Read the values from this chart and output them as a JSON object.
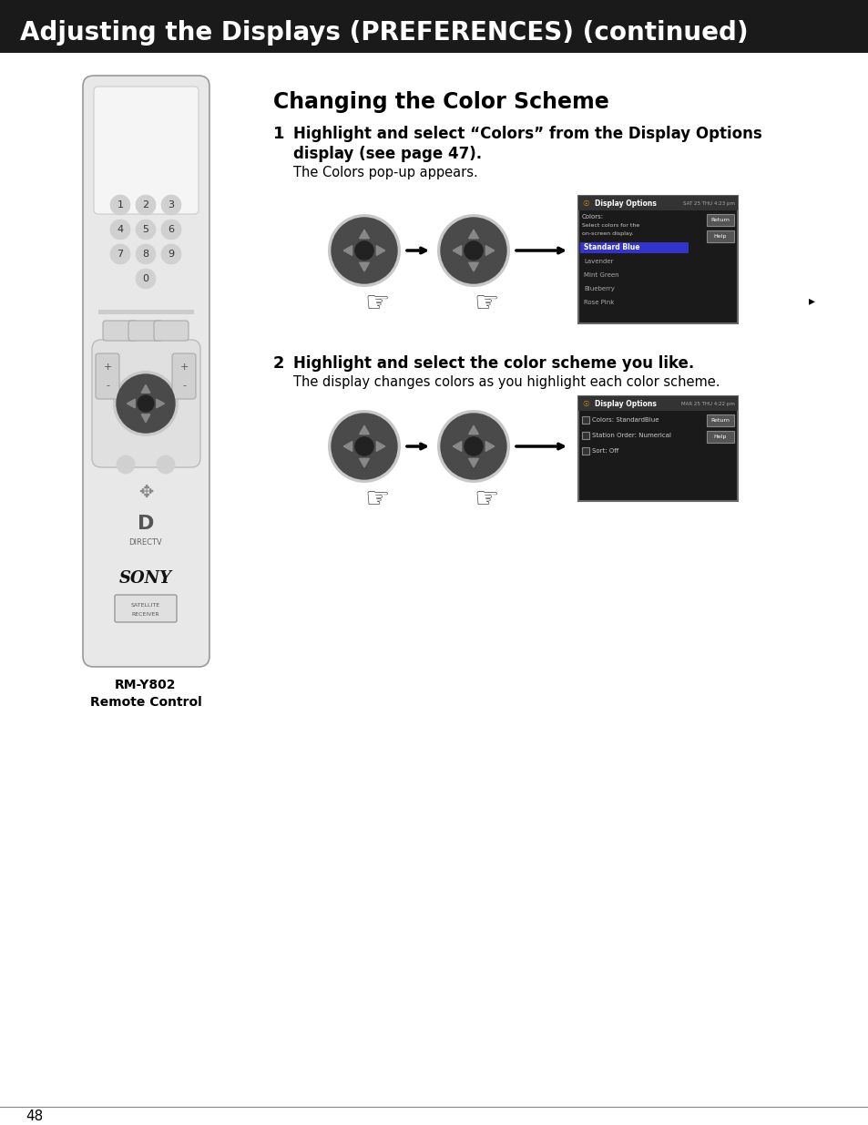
{
  "page_bg": "#ffffff",
  "header_bg": "#1a1a1a",
  "header_text": "Adjusting the Displays (PREFERENCES) (continued)",
  "header_text_color": "#ffffff",
  "header_font_size": 20,
  "section_title": "Changing the Color Scheme",
  "step1_num": "1",
  "step1_line1": "Highlight and select “Colors” from the Display Options",
  "step1_line2": "display (see page 47).",
  "step1_sub": "The Colors pop-up appears.",
  "step2_num": "2",
  "step2_bold": "Highlight and select the color scheme you like.",
  "step2_sub": "The display changes colors as you highlight each color scheme.",
  "remote_label1": "RM-Y802",
  "remote_label2": "Remote Control",
  "page_number": "48"
}
